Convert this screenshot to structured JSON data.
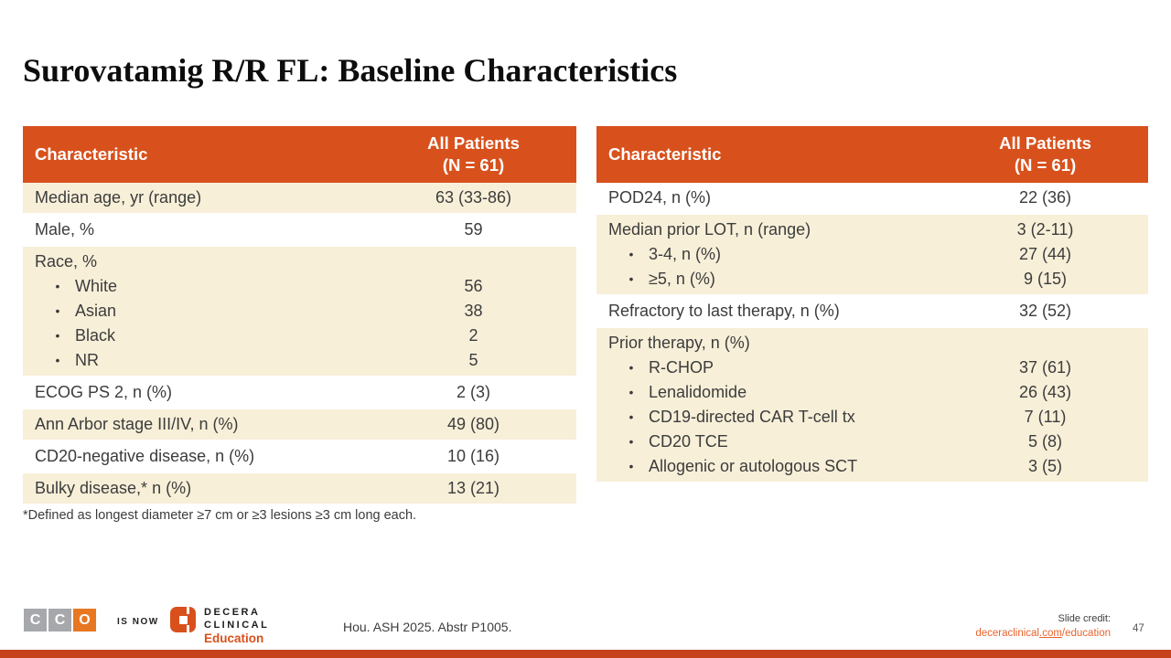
{
  "colors": {
    "accent": "#D8511D",
    "row_shade": "#F7EFD8",
    "link": "#E8632C",
    "bar": "#C6421C"
  },
  "slide": {
    "title": "Surovatamig R/R FL: Baseline Characteristics",
    "footnote": "*Defined as longest diameter ≥7 cm or ≥3 lesions ≥3 cm long each.",
    "reference": "Hou. ASH 2025. Abstr P1005.",
    "page_number": "47",
    "credit": {
      "label": "Slide credit:",
      "link_pre": "deceraclinical",
      "link_underlined": ".com",
      "link_post": "/education"
    }
  },
  "branding": {
    "cco": {
      "letter1": "C",
      "letter2": "C",
      "letter3": "O"
    },
    "is_now": "IS NOW",
    "decera": {
      "line1": "DECERA",
      "line2": "CLINICAL",
      "line3": "Education"
    }
  },
  "tables": [
    {
      "header": {
        "characteristic": "Characteristic",
        "patients": "All Patients\n(N = 61)"
      },
      "rows": [
        {
          "label": "Median age, yr (range)",
          "value": "63 (33-86)",
          "shaded": true
        },
        {
          "label": "Male, %",
          "value": "59",
          "shaded": false
        },
        {
          "label": "Race, %",
          "value": "",
          "shaded": true,
          "items": [
            {
              "label": "White",
              "value": "56"
            },
            {
              "label": "Asian",
              "value": "38"
            },
            {
              "label": "Black",
              "value": "2"
            },
            {
              "label": "NR",
              "value": "5"
            }
          ]
        },
        {
          "label": "ECOG PS 2, n (%)",
          "value": "2 (3)",
          "shaded": false
        },
        {
          "label": "Ann Arbor stage III/IV, n (%)",
          "value": "49 (80)",
          "shaded": true
        },
        {
          "label": "CD20-negative disease, n (%)",
          "value": "10 (16)",
          "shaded": false
        },
        {
          "label": "Bulky disease,* n (%)",
          "value": "13 (21)",
          "shaded": true
        }
      ]
    },
    {
      "header": {
        "characteristic": "Characteristic",
        "patients": "All Patients\n(N = 61)"
      },
      "rows": [
        {
          "label": "POD24, n (%)",
          "value": "22 (36)",
          "shaded": false
        },
        {
          "label": "Median prior LOT, n (range)",
          "value": "3 (2-11)",
          "shaded": true,
          "items": [
            {
              "label": "3-4, n (%)",
              "value": "27 (44)"
            },
            {
              "label": "≥5, n (%)",
              "value": "9 (15)"
            }
          ]
        },
        {
          "label": "Refractory to last therapy, n (%)",
          "value": "32 (52)",
          "shaded": false
        },
        {
          "label": "Prior therapy, n (%)",
          "value": "",
          "shaded": true,
          "items": [
            {
              "label": "R-CHOP",
              "value": "37 (61)"
            },
            {
              "label": "Lenalidomide",
              "value": "26 (43)"
            },
            {
              "label": "CD19-directed CAR T-cell tx",
              "value": "7 (11)"
            },
            {
              "label": "CD20 TCE",
              "value": "5 (8)"
            },
            {
              "label": "Allogenic or autologous SCT",
              "value": "3 (5)"
            }
          ]
        }
      ]
    }
  ]
}
